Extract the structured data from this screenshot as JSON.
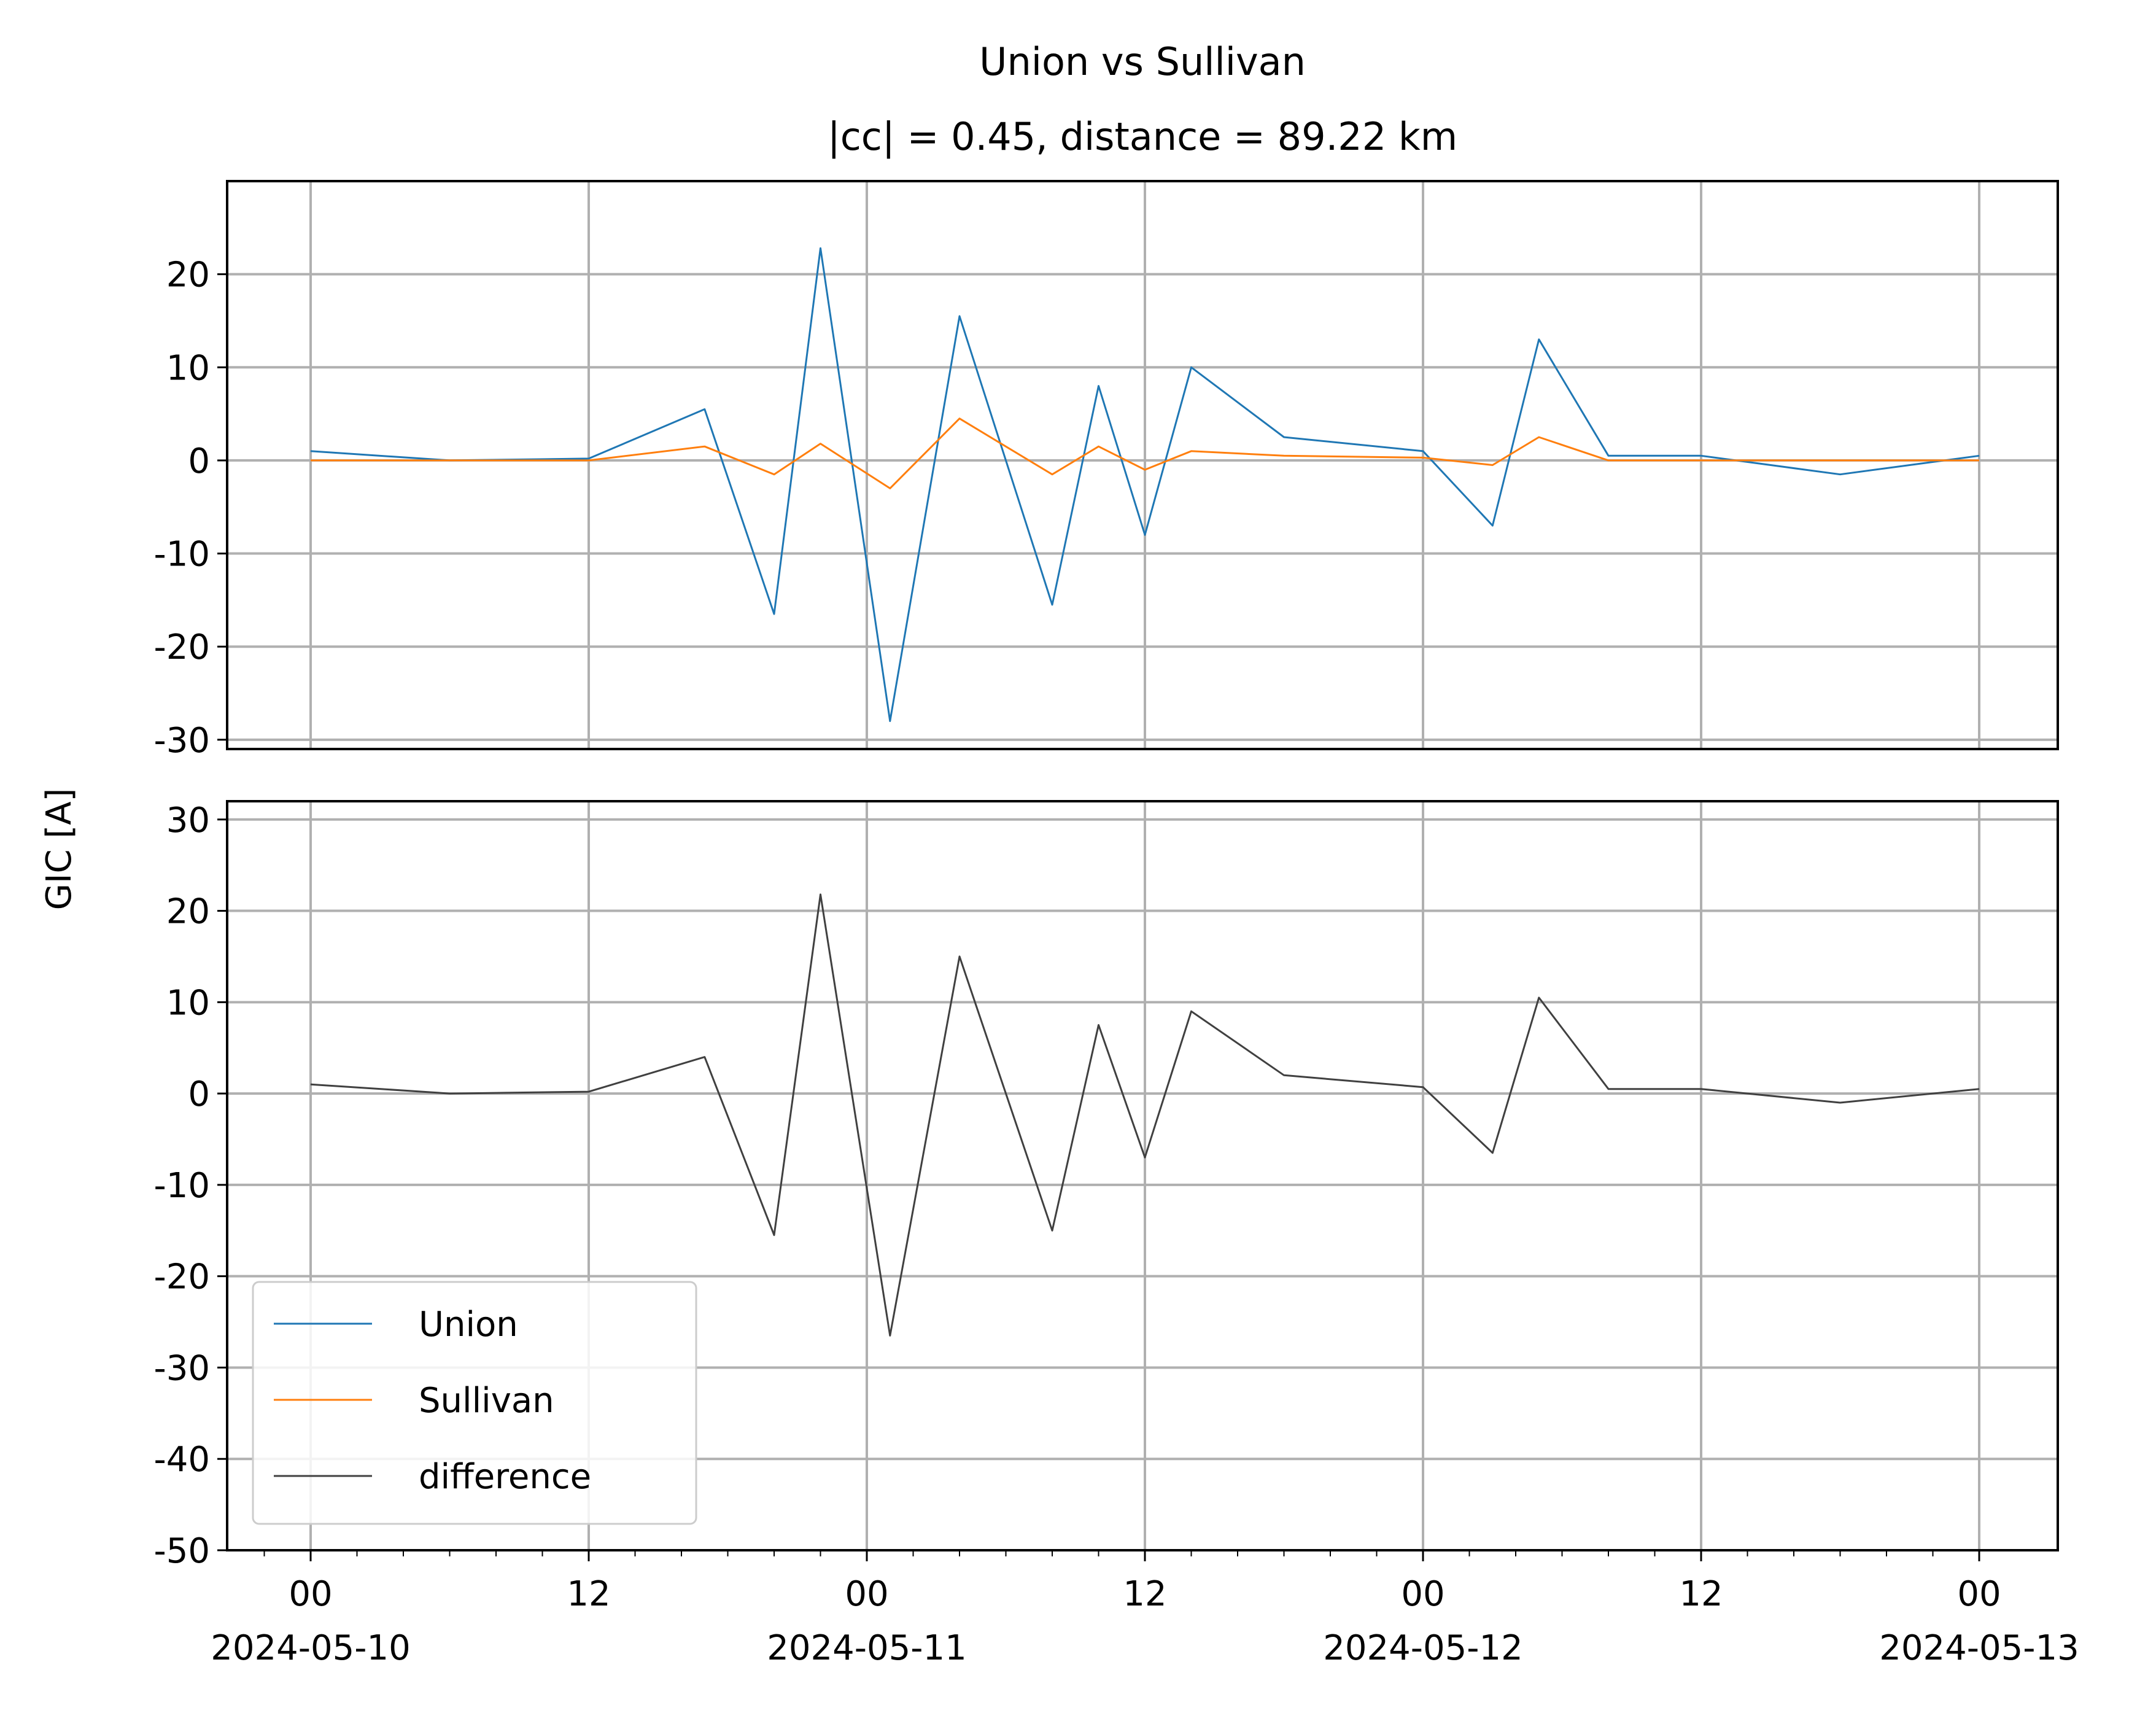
{
  "chart_data": [
    {
      "type": "line",
      "title": "Union vs Sullivan",
      "subtitle": "|cc| = 0.45, distance = 89.22 km",
      "xlabel": "",
      "ylabel": "GIC [A]",
      "ylim": [
        -31,
        30
      ],
      "yticks": [
        "20",
        "10",
        "0",
        "-10",
        "-20",
        "-30"
      ],
      "grid": true,
      "x": [
        "2024-05-10 00:00",
        "2024-05-10 06:00",
        "2024-05-10 12:00",
        "2024-05-10 17:00",
        "2024-05-10 20:00",
        "2024-05-10 22:00",
        "2024-05-11 01:00",
        "2024-05-11 04:00",
        "2024-05-11 08:00",
        "2024-05-11 10:00",
        "2024-05-11 12:00",
        "2024-05-11 14:00",
        "2024-05-11 18:00",
        "2024-05-12 00:00",
        "2024-05-12 03:00",
        "2024-05-12 05:00",
        "2024-05-12 08:00",
        "2024-05-12 12:00",
        "2024-05-12 18:00",
        "2024-05-13 00:00"
      ],
      "series": [
        {
          "name": "Union",
          "color": "#1f77b4",
          "values": [
            1.0,
            0.0,
            0.2,
            5.5,
            -16.5,
            22.8,
            -28.0,
            15.5,
            -15.5,
            8.0,
            -8.0,
            10.0,
            2.5,
            1.0,
            -7.0,
            13.0,
            0.5,
            0.5,
            -1.5,
            0.5
          ]
        },
        {
          "name": "Sullivan",
          "color": "#ff7f0e",
          "values": [
            0.0,
            0.0,
            0.0,
            1.5,
            -1.5,
            1.8,
            -3.0,
            4.5,
            -1.5,
            1.5,
            -1.0,
            1.0,
            0.5,
            0.3,
            -0.5,
            2.5,
            0.0,
            0.0,
            0.0,
            0.0
          ]
        }
      ]
    },
    {
      "type": "line",
      "xlabel": "",
      "ylabel": "GIC [A]",
      "ylim": [
        -50,
        32
      ],
      "yticks": [
        "30",
        "20",
        "10",
        "0",
        "-10",
        "-20",
        "-30",
        "-40",
        "-50"
      ],
      "grid": true,
      "xticks": [
        {
          "hour": "00",
          "date": "2024-05-10"
        },
        {
          "hour": "12",
          "date": ""
        },
        {
          "hour": "00",
          "date": "2024-05-11"
        },
        {
          "hour": "12",
          "date": ""
        },
        {
          "hour": "00",
          "date": "2024-05-12"
        },
        {
          "hour": "12",
          "date": ""
        },
        {
          "hour": "00",
          "date": "2024-05-13"
        }
      ],
      "x": [
        "2024-05-10 00:00",
        "2024-05-10 06:00",
        "2024-05-10 12:00",
        "2024-05-10 17:00",
        "2024-05-10 20:00",
        "2024-05-10 22:00",
        "2024-05-11 01:00",
        "2024-05-11 04:00",
        "2024-05-11 08:00",
        "2024-05-11 10:00",
        "2024-05-11 12:00",
        "2024-05-11 14:00",
        "2024-05-11 18:00",
        "2024-05-12 00:00",
        "2024-05-12 03:00",
        "2024-05-12 05:00",
        "2024-05-12 08:00",
        "2024-05-12 12:00",
        "2024-05-12 18:00",
        "2024-05-13 00:00"
      ],
      "series": [
        {
          "name": "difference",
          "color": "#404040",
          "values": [
            1.0,
            0.0,
            0.2,
            4.0,
            -15.5,
            21.8,
            -26.5,
            15.0,
            -15.0,
            7.5,
            -7.0,
            9.0,
            2.0,
            0.7,
            -6.5,
            10.5,
            0.5,
            0.5,
            -1.0,
            0.5
          ]
        }
      ],
      "legend": {
        "position": "lower-left",
        "entries": [
          "Union",
          "Sullivan",
          "difference"
        ]
      }
    }
  ]
}
